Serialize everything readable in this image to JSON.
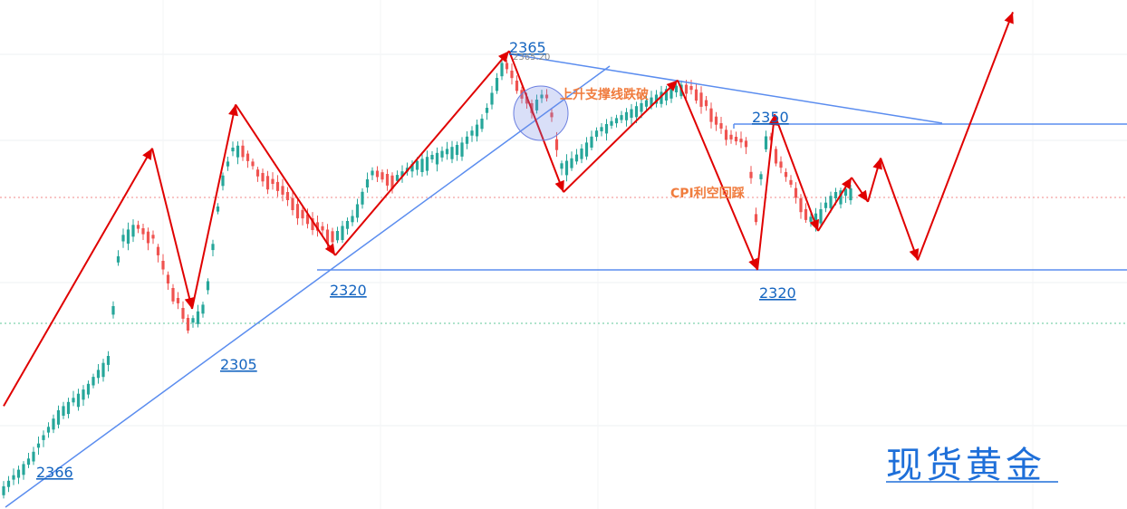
{
  "chart_data": {
    "type": "candlestick",
    "title": "现货黄金",
    "colors": {
      "up": "#26a69a",
      "down": "#ef5350",
      "trend": "#5b8def",
      "arrow": "#e00000",
      "note": "#f07c3e",
      "label": "#1565c0"
    },
    "price_labels": [
      {
        "id": "start-low",
        "text": "2366"
      },
      {
        "id": "low-2305",
        "text": "2305"
      },
      {
        "id": "low-2320-a",
        "text": "2320"
      },
      {
        "id": "high-2365",
        "text": "2365"
      },
      {
        "id": "high-small",
        "text": "2365.20"
      },
      {
        "id": "level-2350",
        "text": "2350"
      },
      {
        "id": "low-2320-b",
        "text": "2320"
      }
    ],
    "annotations": [
      {
        "id": "support-break",
        "text": "上升支撑线跌破"
      },
      {
        "id": "cpi-note",
        "text": "CPI利空回踩"
      }
    ],
    "path_prices": [
      2292,
      2345,
      2312,
      2354,
      2323,
      2365,
      2336,
      2359,
      2320,
      2352,
      2328,
      2339,
      2334,
      2343,
      2322,
      2373
    ],
    "levels": [
      {
        "name": "support",
        "value": 2320
      },
      {
        "name": "resistance",
        "value": 2350
      }
    ],
    "grid": true
  }
}
